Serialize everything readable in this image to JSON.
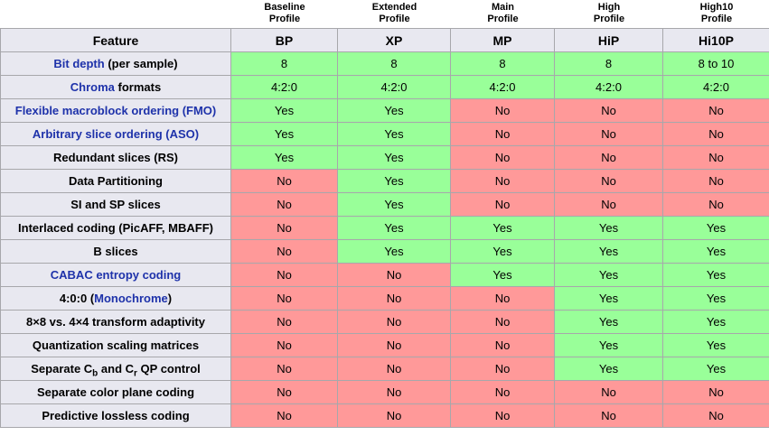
{
  "table": {
    "top_labels": [
      "Baseline\nProfile",
      "Extended\nProfile",
      "Main\nProfile",
      "High\nProfile",
      "High10\nProfile"
    ],
    "header": {
      "feature": "Feature",
      "profiles": [
        "BP",
        "XP",
        "MP",
        "HiP",
        "Hi10P"
      ]
    },
    "rows": [
      {
        "feature": [
          {
            "text": "Bit depth",
            "link": true
          },
          {
            "text": " (per sample)"
          }
        ],
        "values": [
          "8",
          "8",
          "8",
          "8",
          "8 to 10"
        ],
        "states": [
          "yes",
          "yes",
          "yes",
          "yes",
          "yes"
        ]
      },
      {
        "feature": [
          {
            "text": "Chroma",
            "link": true
          },
          {
            "text": " formats"
          }
        ],
        "values": [
          "4:2:0",
          "4:2:0",
          "4:2:0",
          "4:2:0",
          "4:2:0"
        ],
        "states": [
          "yes",
          "yes",
          "yes",
          "yes",
          "yes"
        ]
      },
      {
        "feature": [
          {
            "text": "Flexible macroblock ordering (FMO)",
            "link": true
          }
        ],
        "values": [
          "Yes",
          "Yes",
          "No",
          "No",
          "No"
        ],
        "states": [
          "yes",
          "yes",
          "no",
          "no",
          "no"
        ]
      },
      {
        "feature": [
          {
            "text": "Arbitrary slice ordering (ASO)",
            "link": true
          }
        ],
        "values": [
          "Yes",
          "Yes",
          "No",
          "No",
          "No"
        ],
        "states": [
          "yes",
          "yes",
          "no",
          "no",
          "no"
        ]
      },
      {
        "feature": [
          {
            "text": "Redundant slices (RS)"
          }
        ],
        "values": [
          "Yes",
          "Yes",
          "No",
          "No",
          "No"
        ],
        "states": [
          "yes",
          "yes",
          "no",
          "no",
          "no"
        ]
      },
      {
        "feature": [
          {
            "text": "Data Partitioning"
          }
        ],
        "values": [
          "No",
          "Yes",
          "No",
          "No",
          "No"
        ],
        "states": [
          "no",
          "yes",
          "no",
          "no",
          "no"
        ]
      },
      {
        "feature": [
          {
            "text": "SI and SP slices"
          }
        ],
        "values": [
          "No",
          "Yes",
          "No",
          "No",
          "No"
        ],
        "states": [
          "no",
          "yes",
          "no",
          "no",
          "no"
        ]
      },
      {
        "feature": [
          {
            "text": "Interlaced coding (PicAFF, MBAFF)"
          }
        ],
        "values": [
          "No",
          "Yes",
          "Yes",
          "Yes",
          "Yes"
        ],
        "states": [
          "no",
          "yes",
          "yes",
          "yes",
          "yes"
        ]
      },
      {
        "feature": [
          {
            "text": "B slices"
          }
        ],
        "values": [
          "No",
          "Yes",
          "Yes",
          "Yes",
          "Yes"
        ],
        "states": [
          "no",
          "yes",
          "yes",
          "yes",
          "yes"
        ]
      },
      {
        "feature": [
          {
            "text": "CABAC entropy coding",
            "link": true
          }
        ],
        "values": [
          "No",
          "No",
          "Yes",
          "Yes",
          "Yes"
        ],
        "states": [
          "no",
          "no",
          "yes",
          "yes",
          "yes"
        ]
      },
      {
        "feature": [
          {
            "text": "4:0:0 ("
          },
          {
            "text": "Monochrome",
            "link": true
          },
          {
            "text": ")"
          }
        ],
        "values": [
          "No",
          "No",
          "No",
          "Yes",
          "Yes"
        ],
        "states": [
          "no",
          "no",
          "no",
          "yes",
          "yes"
        ]
      },
      {
        "feature": [
          {
            "text": "8×8 vs. 4×4 transform adaptivity"
          }
        ],
        "values": [
          "No",
          "No",
          "No",
          "Yes",
          "Yes"
        ],
        "states": [
          "no",
          "no",
          "no",
          "yes",
          "yes"
        ]
      },
      {
        "feature": [
          {
            "text": "Quantization scaling matrices"
          }
        ],
        "values": [
          "No",
          "No",
          "No",
          "Yes",
          "Yes"
        ],
        "states": [
          "no",
          "no",
          "no",
          "yes",
          "yes"
        ]
      },
      {
        "feature": [
          {
            "text": "Separate C"
          },
          {
            "text": "b",
            "sub": true
          },
          {
            "text": " and C"
          },
          {
            "text": "r",
            "sub": true
          },
          {
            "text": " QP control"
          }
        ],
        "values": [
          "No",
          "No",
          "No",
          "Yes",
          "Yes"
        ],
        "states": [
          "no",
          "no",
          "no",
          "yes",
          "yes"
        ]
      },
      {
        "feature": [
          {
            "text": "Separate color plane coding"
          }
        ],
        "values": [
          "No",
          "No",
          "No",
          "No",
          "No"
        ],
        "states": [
          "no",
          "no",
          "no",
          "no",
          "no"
        ]
      },
      {
        "feature": [
          {
            "text": "Predictive lossless coding"
          }
        ],
        "values": [
          "No",
          "No",
          "No",
          "No",
          "No"
        ],
        "states": [
          "no",
          "no",
          "no",
          "no",
          "no"
        ]
      }
    ],
    "colors": {
      "yes_bg": "#99FF99",
      "no_bg": "#FF9999",
      "header_bg": "#E8E8F0",
      "border": "#A7A7AB",
      "link": "#1E32AA"
    }
  },
  "chart_data": {
    "type": "table",
    "title": "H.264 profile feature comparison",
    "column_group_labels": [
      "Baseline Profile",
      "Extended Profile",
      "Main Profile",
      "High Profile",
      "High10 Profile"
    ],
    "columns": [
      "Feature",
      "BP",
      "XP",
      "MP",
      "HiP",
      "Hi10P"
    ],
    "rows": [
      [
        "Bit depth (per sample)",
        "8",
        "8",
        "8",
        "8",
        "8 to 10"
      ],
      [
        "Chroma formats",
        "4:2:0",
        "4:2:0",
        "4:2:0",
        "4:2:0",
        "4:2:0"
      ],
      [
        "Flexible macroblock ordering (FMO)",
        "Yes",
        "Yes",
        "No",
        "No",
        "No"
      ],
      [
        "Arbitrary slice ordering (ASO)",
        "Yes",
        "Yes",
        "No",
        "No",
        "No"
      ],
      [
        "Redundant slices (RS)",
        "Yes",
        "Yes",
        "No",
        "No",
        "No"
      ],
      [
        "Data Partitioning",
        "No",
        "Yes",
        "No",
        "No",
        "No"
      ],
      [
        "SI and SP slices",
        "No",
        "Yes",
        "No",
        "No",
        "No"
      ],
      [
        "Interlaced coding (PicAFF, MBAFF)",
        "No",
        "Yes",
        "Yes",
        "Yes",
        "Yes"
      ],
      [
        "B slices",
        "No",
        "Yes",
        "Yes",
        "Yes",
        "Yes"
      ],
      [
        "CABAC entropy coding",
        "No",
        "No",
        "Yes",
        "Yes",
        "Yes"
      ],
      [
        "4:0:0 (Monochrome)",
        "No",
        "No",
        "No",
        "Yes",
        "Yes"
      ],
      [
        "8×8 vs. 4×4 transform adaptivity",
        "No",
        "No",
        "No",
        "Yes",
        "Yes"
      ],
      [
        "Quantization scaling matrices",
        "No",
        "No",
        "No",
        "Yes",
        "Yes"
      ],
      [
        "Separate Cb and Cr QP control",
        "No",
        "No",
        "No",
        "Yes",
        "Yes"
      ],
      [
        "Separate color plane coding",
        "No",
        "No",
        "No",
        "No",
        "No"
      ],
      [
        "Predictive lossless coding",
        "No",
        "No",
        "No",
        "No",
        "No"
      ]
    ]
  }
}
